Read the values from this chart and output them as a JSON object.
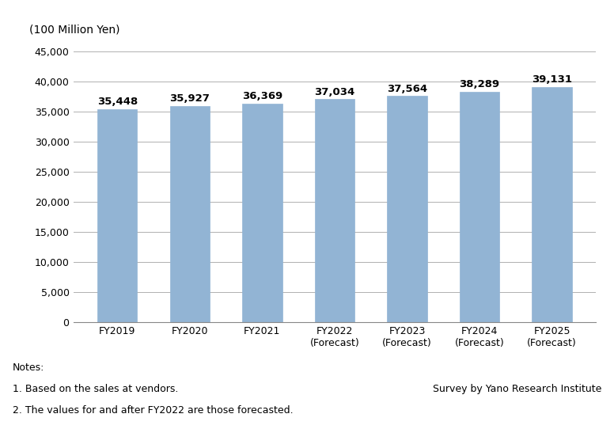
{
  "categories": [
    "FY2019",
    "FY2020",
    "FY2021",
    "FY2022\n(Forecast)",
    "FY2023\n(Forecast)",
    "FY2024\n(Forecast)",
    "FY2025\n(Forecast)"
  ],
  "values": [
    35448,
    35927,
    36369,
    37034,
    37564,
    38289,
    39131
  ],
  "bar_color": "#92b4d4",
  "bar_edge_color": "#92b4d4",
  "unit_label": "(100 Million Yen)",
  "ylim": [
    0,
    45000
  ],
  "yticks": [
    0,
    5000,
    10000,
    15000,
    20000,
    25000,
    30000,
    35000,
    40000,
    45000
  ],
  "grid_color": "#b0b0b0",
  "background_color": "#ffffff",
  "note_line1": "Notes:",
  "note_line2": "1. Based on the sales at vendors.",
  "note_line3": "2. The values for and after FY2022 are those forecasted.",
  "survey_note": "Survey by Yano Research Institute",
  "value_fontsize": 9.5,
  "label_fontsize": 9,
  "unit_fontsize": 10,
  "notes_fontsize": 9,
  "bar_width": 0.55
}
